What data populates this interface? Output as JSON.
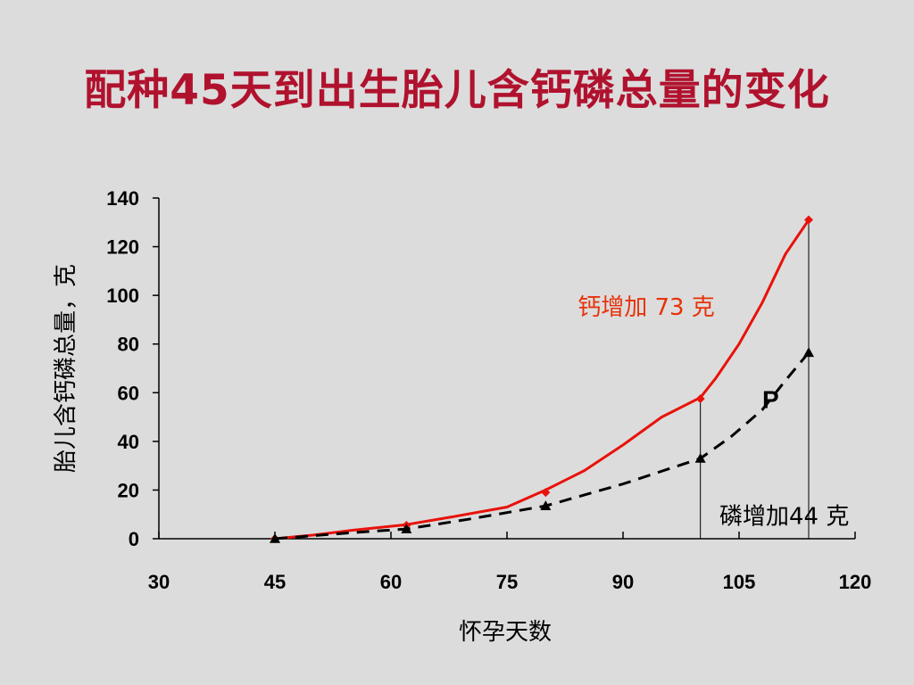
{
  "title": "配种45天到出生胎儿含钙磷总量的变化",
  "chart_data": {
    "type": "line",
    "title": "配种45天到出生胎儿含钙磷总量的变化",
    "xlabel": "怀孕天数",
    "ylabel": "胎儿含钙磷总量，克",
    "xlim": [
      30,
      120
    ],
    "ylim": [
      0,
      140
    ],
    "x_ticks": [
      30,
      45,
      60,
      75,
      90,
      105,
      120
    ],
    "y_ticks": [
      0,
      20,
      40,
      60,
      80,
      100,
      120,
      140
    ],
    "series": [
      {
        "name": "",
        "color": "#e8120a",
        "style": "solid",
        "marker": "diamond",
        "x": [
          45,
          62,
          80,
          100,
          114
        ],
        "y": [
          0,
          5.5,
          19,
          57.5,
          131
        ],
        "curve_y": [
          0,
          1.5,
          3.5,
          5.8,
          9,
          13,
          20,
          28,
          38.5,
          50,
          58,
          66,
          80,
          97,
          117,
          131
        ],
        "curve_x": [
          45,
          50,
          55,
          62,
          68,
          75,
          80,
          85,
          90,
          95,
          100,
          102,
          105,
          108,
          111,
          114
        ]
      },
      {
        "name": "",
        "color": "#000000",
        "style": "dashed",
        "marker": "triangle",
        "x": [
          45,
          62,
          80,
          100,
          114
        ],
        "y": [
          0,
          4,
          13.5,
          33,
          76.5
        ],
        "curve_x": [
          45,
          55,
          62,
          70,
          80,
          90,
          100,
          104,
          108,
          111,
          114
        ],
        "curve_y": [
          0,
          2.5,
          4,
          8,
          13.5,
          22.5,
          33,
          42,
          53,
          65,
          76.5
        ]
      }
    ],
    "annotations": [
      {
        "text": "钙增加 73 克",
        "x": 93,
        "y": 92
      },
      {
        "text": "磷增加44 克",
        "x": 100,
        "y": 10
      },
      {
        "text": "P",
        "x": 110,
        "y": 58
      }
    ]
  }
}
